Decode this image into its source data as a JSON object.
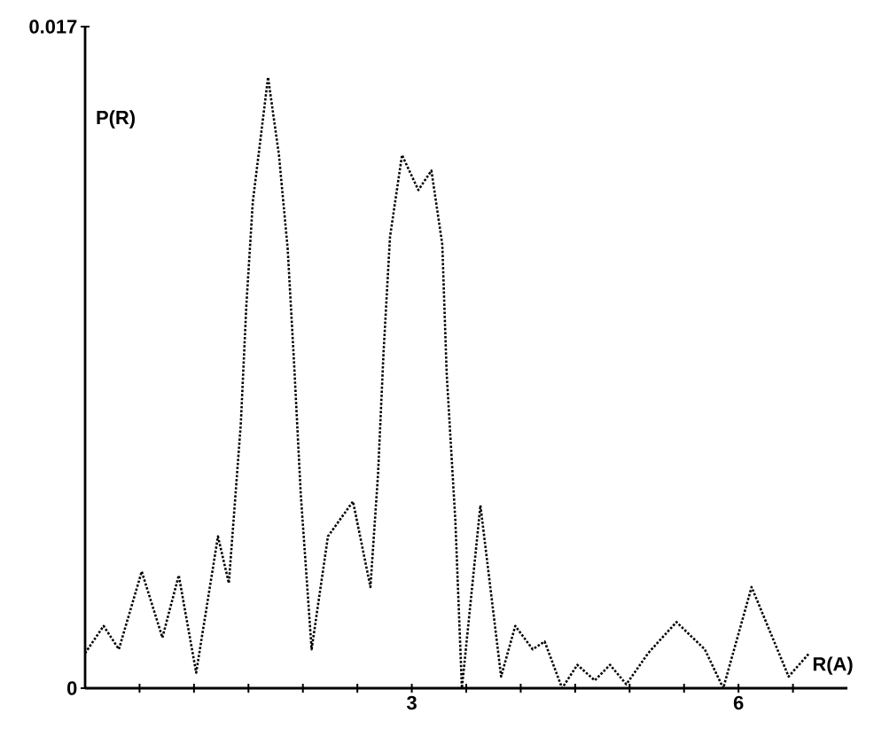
{
  "chart_data": {
    "type": "line",
    "xlabel": "R(A)",
    "ylabel": "P(R)",
    "xlim": [
      0,
      7
    ],
    "ylim": [
      0,
      0.017
    ],
    "xticks": [
      {
        "value": 0.5,
        "label": null
      },
      {
        "value": 1,
        "label": null
      },
      {
        "value": 1.5,
        "label": null
      },
      {
        "value": 2,
        "label": null
      },
      {
        "value": 2.5,
        "label": null
      },
      3,
      {
        "value": 3.5,
        "label": null
      },
      {
        "value": 4,
        "label": null
      },
      {
        "value": 4.5,
        "label": null
      },
      {
        "value": 5,
        "label": null
      },
      {
        "value": 5.5,
        "label": null
      },
      6,
      {
        "value": 6.5,
        "label": null
      }
    ],
    "yticks": [
      0,
      0.017
    ],
    "line_style": "dotted",
    "color": "#000000",
    "x": [
      0,
      0.17,
      0.31,
      0.52,
      0.71,
      0.86,
      1.02,
      1.22,
      1.32,
      1.43,
      1.48,
      1.54,
      1.68,
      1.78,
      1.86,
      1.92,
      1.98,
      2.08,
      2.23,
      2.46,
      2.62,
      2.69,
      2.74,
      2.8,
      2.91,
      3.06,
      3.18,
      3.28,
      3.32,
      3.4,
      3.46,
      3.63,
      3.82,
      3.95,
      4.11,
      4.22,
      4.38,
      4.52,
      4.68,
      4.82,
      4.97,
      5.17,
      5.43,
      5.69,
      5.86,
      6.12,
      6.46,
      6.65
    ],
    "values": [
      0.0009,
      0.0016,
      0.001,
      0.003,
      0.0013,
      0.0029,
      0.0004,
      0.0039,
      0.0027,
      0.0068,
      0.0098,
      0.0125,
      0.0157,
      0.0137,
      0.0113,
      0.0083,
      0.005,
      0.001,
      0.0039,
      0.0048,
      0.0026,
      0.0055,
      0.0086,
      0.0116,
      0.0137,
      0.0128,
      0.0133,
      0.0114,
      0.0081,
      0.0043,
      0.0,
      0.0047,
      0.0003,
      0.0016,
      0.001,
      0.0012,
      0.0,
      0.0006,
      0.0002,
      0.0006,
      0.0001,
      0.0009,
      0.0017,
      0.001,
      0.0,
      0.0026,
      0.0003,
      0.0009
    ]
  }
}
